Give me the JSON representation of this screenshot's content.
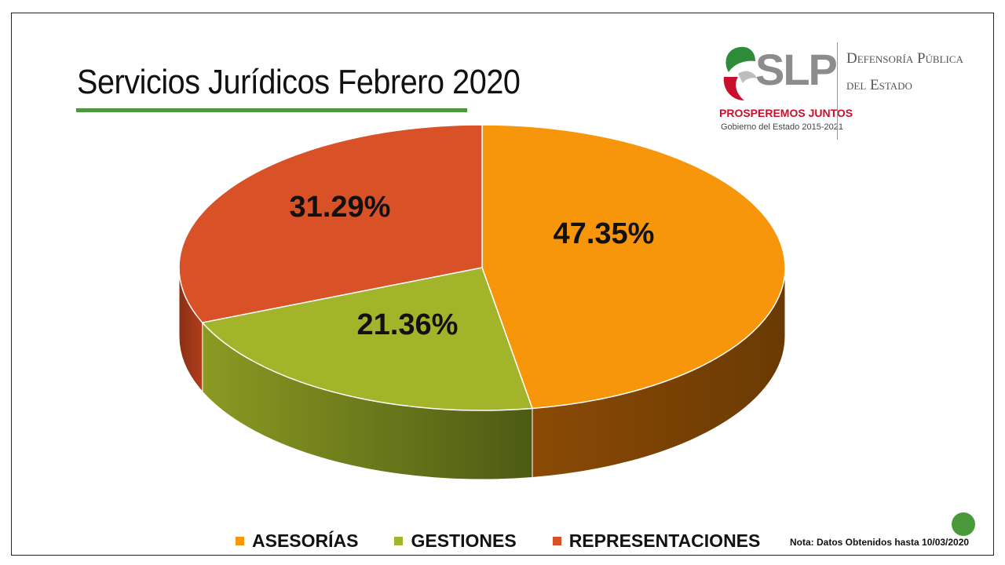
{
  "slide": {
    "title": "Servicios Jurídicos Febrero 2020",
    "note": "Nota: Datos Obtenidos hasta 10/03/2020"
  },
  "logo": {
    "mark": "SLP",
    "slogan": "PROSPEREMOS JUNTOS",
    "subtitle": "Gobierno del Estado 2015-2021",
    "department_line1": "Defensoría Pública",
    "department_line2": "del Estado"
  },
  "colors": {
    "asesorias": "#f7960a",
    "gestiones": "#a2b42a",
    "representaciones": "#d95127",
    "accent_green": "#4a9a3c"
  },
  "chart_data": {
    "type": "pie",
    "style": "3d",
    "title": "Servicios Jurídicos Febrero 2020",
    "categories": [
      "ASESORÍAS",
      "GESTIONES",
      "REPRESENTACIONES"
    ],
    "values": [
      47.35,
      21.36,
      31.29
    ],
    "labels": [
      "47.35%",
      "21.36%",
      "31.29%"
    ],
    "legend_placement": "bottom"
  }
}
